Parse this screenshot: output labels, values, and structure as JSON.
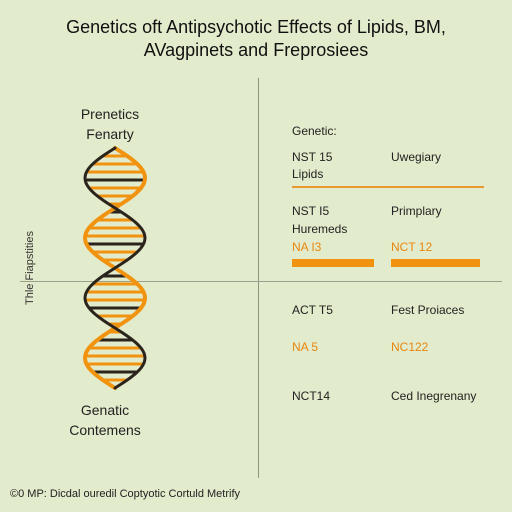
{
  "title_line1": "Genetics oft Antipsychotic Effects of Lipids, BM,",
  "title_line2": "AVagpinets and Freprosiees",
  "side_label": "Thle Fiapstities",
  "helix_top_line1": "Prenetics",
  "helix_top_line2": "Fenarty",
  "helix_bottom_line1": "Genatic",
  "helix_bottom_line2": "Contemens",
  "colors": {
    "background": "#e2ebcb",
    "accent_orange": "#f2930f",
    "helix_dark": "#2b241c"
  },
  "right_panel": {
    "header": "Genetic:",
    "row1_left_line1": "NST 15",
    "row1_left_line2": "Lipids",
    "row1_right": "Uwegiary",
    "row2_left_line1": "NST I5",
    "row2_left_line2": "Huremeds",
    "row2_right": "Primplary",
    "row2_left_value": "NA I3",
    "row2_right_value": "NCT 12",
    "row3_left": "ACT T5",
    "row3_right": "Fest Proiaces",
    "row3_left_value": "NA 5",
    "row3_right_value": "NC122",
    "row4_left": "NCT14",
    "row4_right": "Ced Inegrenany"
  },
  "footer": "©0 MP: Dicdal ouredil Coptyotic Cortuld Metrify"
}
